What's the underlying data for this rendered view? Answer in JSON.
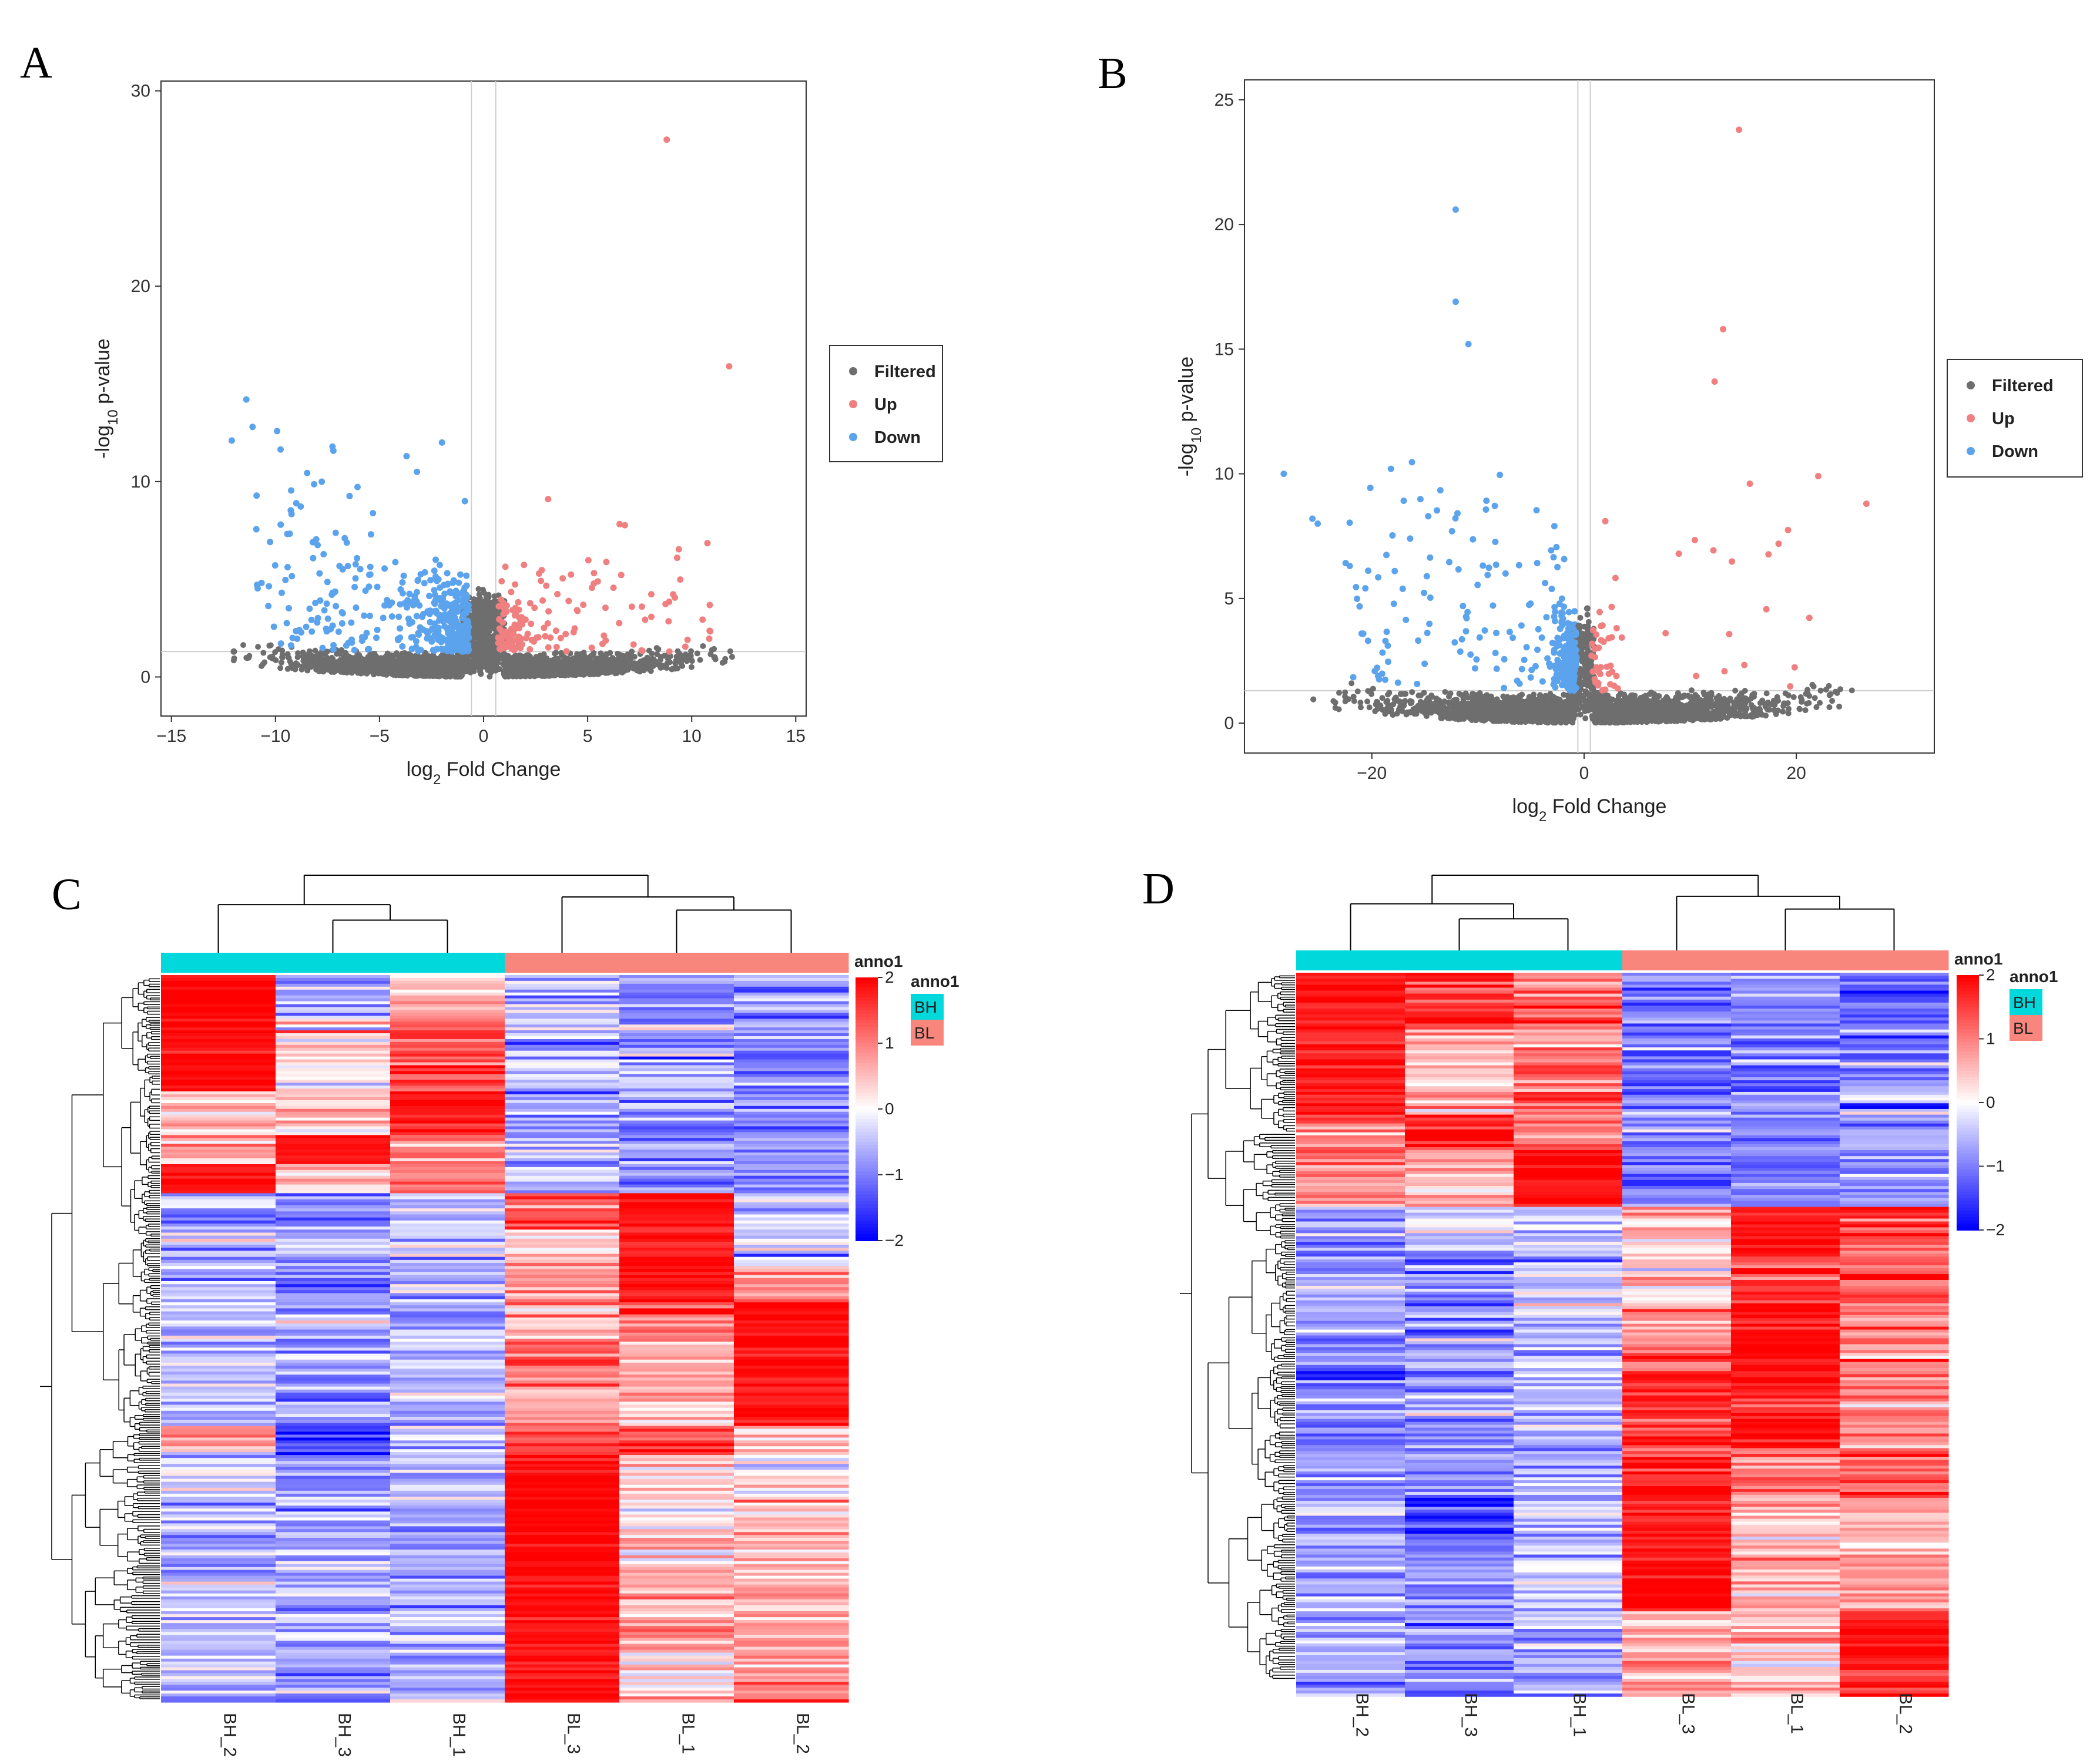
{
  "figure": {
    "panel_labels": [
      "A",
      "B",
      "C",
      "D"
    ]
  },
  "chart_data": [
    {
      "panel": "A",
      "type": "scatter",
      "subtype": "volcano",
      "xlabel": "log₂ Fold Change",
      "ylabel": "-log₁₀ p-value",
      "xlim": [
        -15.5,
        15.5
      ],
      "ylim": [
        -2,
        30.5
      ],
      "xticks": [
        -15,
        -10,
        -5,
        0,
        5,
        10,
        15
      ],
      "yticks": [
        0,
        10,
        20,
        30
      ],
      "thresholds": {
        "x": [
          -0.585,
          0.585
        ],
        "y": 1.3
      },
      "legend": [
        "Filtered",
        "Up",
        "Down"
      ],
      "colors": {
        "Filtered": "#6e6e6e",
        "Up": "#f07f80",
        "Down": "#5ba3ec"
      },
      "notable_points": {
        "Up": [
          [
            8.8,
            27.5
          ],
          [
            11.8,
            15.9
          ],
          [
            9.3,
            6.1
          ],
          [
            3.1,
            9.1
          ],
          [
            9.8,
            1.9
          ]
        ],
        "Down": [
          [
            -11.4,
            14.2
          ],
          [
            -11.1,
            12.8
          ],
          [
            -12.1,
            12.1
          ],
          [
            -2.0,
            12.0
          ],
          [
            -3.7,
            11.3
          ],
          [
            -3.2,
            10.5
          ],
          [
            -0.9,
            9.0
          ]
        ],
        "Filtered": [
          [
            11.1,
            1.0
          ],
          [
            -12.0,
            1.3
          ]
        ]
      },
      "n_points_approx": {
        "Filtered": 3000,
        "Up": 150,
        "Down": 400
      }
    },
    {
      "panel": "B",
      "type": "scatter",
      "subtype": "volcano",
      "xlabel": "log₂ Fold Change",
      "ylabel": "-log₁₀ p-value",
      "xlim": [
        -32,
        33
      ],
      "ylim": [
        -1.2,
        25.8
      ],
      "xticks": [
        -20,
        0,
        20
      ],
      "yticks": [
        0,
        5,
        10,
        15,
        20,
        25
      ],
      "thresholds": {
        "x": [
          -0.585,
          0.585
        ],
        "y": 1.3
      },
      "legend": [
        "Filtered",
        "Up",
        "Down"
      ],
      "colors": {
        "Filtered": "#6e6e6e",
        "Up": "#f07f80",
        "Down": "#5ba3ec"
      },
      "notable_points": {
        "Up": [
          [
            14.6,
            23.8
          ],
          [
            13.1,
            15.8
          ],
          [
            12.3,
            13.7
          ],
          [
            26.6,
            8.8
          ],
          [
            2.0,
            8.1
          ]
        ],
        "Down": [
          [
            -12.1,
            20.6
          ],
          [
            -12.1,
            16.9
          ],
          [
            -10.9,
            15.2
          ],
          [
            -28.3,
            10.0
          ],
          [
            -18.2,
            10.2
          ],
          [
            -25.6,
            8.2
          ],
          [
            -25.1,
            8.0
          ],
          [
            -2.8,
            7.9
          ]
        ],
        "Filtered": [
          [
            0.3,
            4.6
          ],
          [
            -0.5,
            3.9
          ]
        ]
      },
      "n_points_approx": {
        "Filtered": 3000,
        "Up": 60,
        "Down": 300
      }
    },
    {
      "panel": "C",
      "type": "heatmap",
      "columns": [
        "BH_2",
        "BH_3",
        "BH_1",
        "BL_3",
        "BL_1",
        "BL_2"
      ],
      "column_groups": [
        "BH",
        "BH",
        "BH",
        "BL",
        "BL",
        "BL"
      ],
      "annotation_title": "anno1",
      "annotation_legend": [
        {
          "label": "BH",
          "color": "#00d8dc"
        },
        {
          "label": "BL",
          "color": "#f8867c"
        }
      ],
      "colorbar": {
        "ticks": [
          2,
          1,
          0,
          -1,
          -2
        ],
        "colors": [
          "#ff0000",
          "#ffffff",
          "#0000ff"
        ],
        "range": [
          -2,
          2
        ]
      },
      "row_blocks": [
        {
          "fraction": 0.06,
          "values": [
            2.0,
            -0.6,
            0.6,
            -0.6,
            -0.9,
            -0.9
          ]
        },
        {
          "fraction": 0.1,
          "values": [
            1.9,
            0.1,
            1.3,
            -0.6,
            -0.8,
            -0.9
          ]
        },
        {
          "fraction": 0.06,
          "values": [
            0.7,
            0.5,
            1.9,
            -0.7,
            -0.8,
            -0.9
          ]
        },
        {
          "fraction": 0.04,
          "values": [
            0.8,
            1.9,
            1.0,
            -0.6,
            -0.8,
            -0.8
          ]
        },
        {
          "fraction": 0.04,
          "values": [
            1.9,
            0.4,
            0.9,
            -0.6,
            -0.8,
            -0.8
          ]
        },
        {
          "fraction": 0.05,
          "values": [
            -0.6,
            -0.9,
            -0.5,
            1.2,
            1.9,
            -0.4
          ]
        },
        {
          "fraction": 0.05,
          "values": [
            -0.5,
            -0.6,
            -0.4,
            0.3,
            1.9,
            -0.3
          ]
        },
        {
          "fraction": 0.05,
          "values": [
            -0.5,
            -0.9,
            -0.6,
            0.9,
            1.9,
            0.8
          ]
        },
        {
          "fraction": 0.05,
          "values": [
            -0.6,
            -0.8,
            -0.7,
            0.6,
            1.2,
            1.8
          ]
        },
        {
          "fraction": 0.07,
          "values": [
            -0.6,
            -0.8,
            -0.7,
            1.0,
            0.7,
            1.9
          ]
        },
        {
          "fraction": 0.05,
          "values": [
            -0.6,
            -0.7,
            -0.6,
            0.6,
            0.3,
            1.9
          ]
        },
        {
          "fraction": 0.04,
          "values": [
            0.7,
            -1.5,
            -0.5,
            1.4,
            1.3,
            0.4
          ]
        },
        {
          "fraction": 0.09,
          "values": [
            -0.5,
            -0.6,
            -0.6,
            2.0,
            0.3,
            0.2
          ]
        },
        {
          "fraction": 0.08,
          "values": [
            -0.6,
            -0.6,
            -0.7,
            2.0,
            0.5,
            0.6
          ]
        },
        {
          "fraction": 0.11,
          "values": [
            -0.5,
            -0.6,
            -0.6,
            1.9,
            0.6,
            0.8
          ]
        },
        {
          "fraction": 0.06,
          "values": [
            -0.4,
            -0.9,
            -0.6,
            1.9,
            0.3,
            0.9
          ]
        }
      ]
    },
    {
      "panel": "D",
      "type": "heatmap",
      "columns": [
        "BH_2",
        "BH_3",
        "BH_1",
        "BL_3",
        "BL_1",
        "BL_2"
      ],
      "column_groups": [
        "BH",
        "BH",
        "BH",
        "BL",
        "BL",
        "BL"
      ],
      "annotation_title": "anno1",
      "annotation_legend": [
        {
          "label": "BH",
          "color": "#00d8dc"
        },
        {
          "label": "BL",
          "color": "#f8867c"
        }
      ],
      "colorbar": {
        "ticks": [
          2,
          1,
          0,
          -1,
          -2
        ],
        "colors": [
          "#ff0000",
          "#ffffff",
          "#0000ff"
        ],
        "range": [
          -2,
          2
        ]
      },
      "row_blocks": [
        {
          "fraction": 0.08,
          "values": [
            1.9,
            1.6,
            1.3,
            -1.0,
            -0.9,
            -1.1
          ]
        },
        {
          "fraction": 0.08,
          "values": [
            1.8,
            0.6,
            1.0,
            -0.9,
            -1.1,
            -0.9
          ]
        },
        {
          "fraction": 0.04,
          "values": [
            1.9,
            0.6,
            1.2,
            -1.0,
            -1.0,
            -0.9
          ]
        },
        {
          "fraction": 0.05,
          "values": [
            1.0,
            1.7,
            1.3,
            -0.9,
            -1.0,
            -1.0
          ]
        },
        {
          "fraction": 0.08,
          "values": [
            0.8,
            0.6,
            1.9,
            -0.9,
            -1.0,
            -0.9
          ]
        },
        {
          "fraction": 0.07,
          "values": [
            -1.0,
            -0.6,
            -0.4,
            0.3,
            1.9,
            1.6
          ]
        },
        {
          "fraction": 0.07,
          "values": [
            -0.8,
            -0.9,
            -0.5,
            0.5,
            1.5,
            1.4
          ]
        },
        {
          "fraction": 0.07,
          "values": [
            -0.9,
            -0.7,
            -0.8,
            0.7,
            1.9,
            0.8
          ]
        },
        {
          "fraction": 0.06,
          "values": [
            -1.0,
            -0.8,
            -0.6,
            1.5,
            1.9,
            1.0
          ]
        },
        {
          "fraction": 0.07,
          "values": [
            -1.1,
            -0.7,
            -0.5,
            1.6,
            1.7,
            0.9
          ]
        },
        {
          "fraction": 0.07,
          "values": [
            -0.8,
            -0.8,
            -0.5,
            1.6,
            0.9,
            1.2
          ]
        },
        {
          "fraction": 0.08,
          "values": [
            -0.7,
            -1.2,
            -0.6,
            1.8,
            0.3,
            0.6
          ]
        },
        {
          "fraction": 0.08,
          "values": [
            -0.7,
            -0.8,
            -0.5,
            1.9,
            0.7,
            0.8
          ]
        },
        {
          "fraction": 0.07,
          "values": [
            -0.7,
            -0.8,
            -0.7,
            0.6,
            0.6,
            1.9
          ]
        },
        {
          "fraction": 0.05,
          "values": [
            -0.7,
            -0.9,
            -0.7,
            1.0,
            0.5,
            1.7
          ]
        }
      ]
    }
  ]
}
